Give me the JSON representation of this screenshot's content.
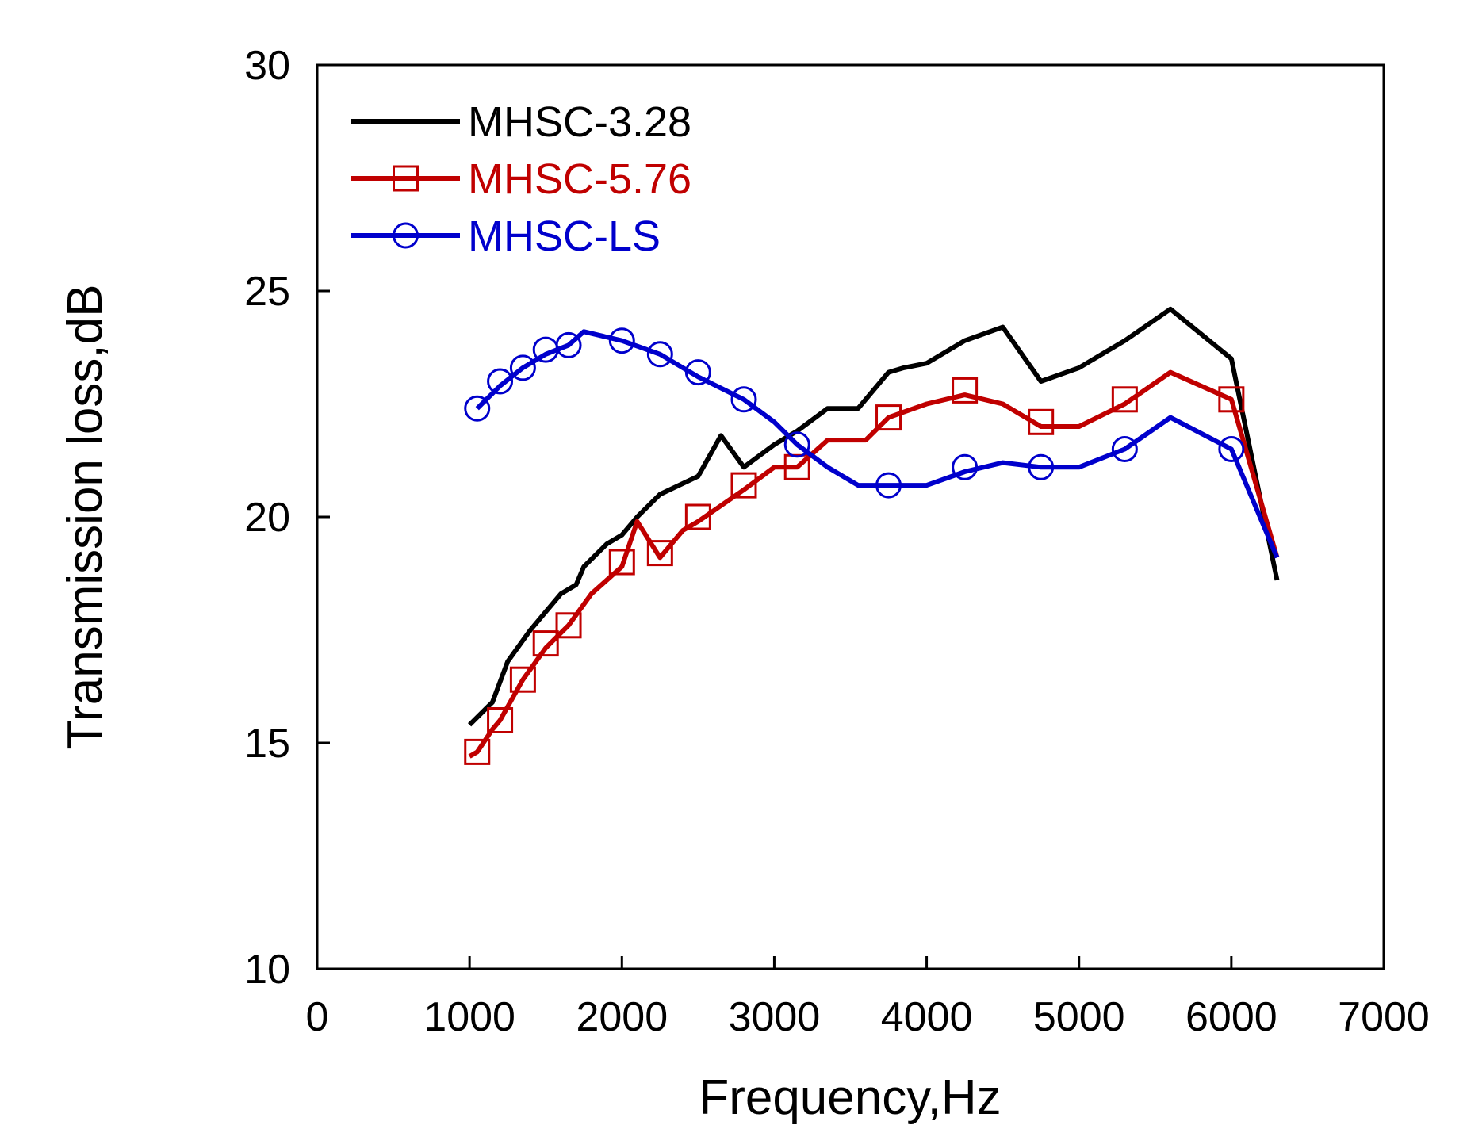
{
  "chart_data": {
    "type": "line",
    "title": "",
    "xlabel": "Frequency,Hz",
    "ylabel": "Transmission loss,dB",
    "xlim": [
      0,
      7000
    ],
    "ylim": [
      10,
      30
    ],
    "xticks": [
      0,
      1000,
      2000,
      3000,
      4000,
      5000,
      6000,
      7000
    ],
    "yticks": [
      10,
      15,
      20,
      25,
      30
    ],
    "grid": false,
    "legend_position": "top-left",
    "series": [
      {
        "name": "MHSC-3.28",
        "color": "#000000",
        "marker": "none",
        "x": [
          1000,
          1150,
          1250,
          1400,
          1500,
          1600,
          1700,
          1750,
          1900,
          2000,
          2100,
          2250,
          2500,
          2650,
          2800,
          3000,
          3150,
          3350,
          3550,
          3750,
          3850,
          4000,
          4250,
          4500,
          4750,
          5000,
          5300,
          5600,
          6000,
          6300
        ],
        "y": [
          15.4,
          15.9,
          16.8,
          17.5,
          17.9,
          18.3,
          18.5,
          18.9,
          19.4,
          19.6,
          20.0,
          20.5,
          20.9,
          21.8,
          21.1,
          21.6,
          21.9,
          22.4,
          22.4,
          23.2,
          23.3,
          23.4,
          23.9,
          24.2,
          23.0,
          23.3,
          23.9,
          24.6,
          23.5,
          18.6
        ]
      },
      {
        "name": "MHSC-5.76",
        "color": "#c00000",
        "marker": "square",
        "x": [
          1000,
          1050,
          1150,
          1200,
          1350,
          1500,
          1650,
          1800,
          2000,
          2100,
          2250,
          2400,
          2500,
          2800,
          3000,
          3150,
          3350,
          3600,
          3750,
          4000,
          4250,
          4500,
          4750,
          5000,
          5300,
          5600,
          6000,
          6300
        ],
        "y": [
          14.7,
          14.8,
          15.3,
          15.5,
          16.4,
          17.1,
          17.6,
          18.3,
          18.9,
          19.9,
          19.1,
          19.7,
          19.9,
          20.6,
          21.1,
          21.1,
          21.7,
          21.7,
          22.2,
          22.5,
          22.7,
          22.5,
          22.0,
          22.0,
          22.5,
          23.2,
          22.6,
          19.1
        ],
        "marker_x": [
          1050,
          1200,
          1350,
          1500,
          1650,
          2000,
          2250,
          2500,
          2800,
          3150,
          3750,
          4250,
          4750,
          5300,
          6000
        ],
        "marker_y": [
          14.8,
          15.5,
          16.4,
          17.2,
          17.6,
          19.0,
          19.2,
          20.0,
          20.7,
          21.1,
          22.2,
          22.8,
          22.1,
          22.6,
          22.6
        ]
      },
      {
        "name": "MHSC-LS",
        "color": "#0000cc",
        "marker": "circle",
        "x": [
          1050,
          1200,
          1350,
          1500,
          1650,
          1750,
          2000,
          2250,
          2500,
          2800,
          3000,
          3150,
          3350,
          3550,
          3750,
          4000,
          4250,
          4500,
          4750,
          5000,
          5300,
          5600,
          6000,
          6300
        ],
        "y": [
          22.4,
          22.9,
          23.3,
          23.6,
          23.8,
          24.1,
          23.9,
          23.6,
          23.1,
          22.6,
          22.1,
          21.6,
          21.1,
          20.7,
          20.7,
          20.7,
          21.0,
          21.2,
          21.1,
          21.1,
          21.5,
          22.2,
          21.5,
          19.1
        ],
        "marker_x": [
          1050,
          1200,
          1350,
          1500,
          1650,
          2000,
          2250,
          2500,
          2800,
          3150,
          3750,
          4250,
          4750,
          5300,
          6000
        ],
        "marker_y": [
          22.4,
          23.0,
          23.3,
          23.7,
          23.8,
          23.9,
          23.6,
          23.2,
          22.6,
          21.6,
          20.7,
          21.1,
          21.1,
          21.5,
          21.5
        ]
      }
    ]
  }
}
